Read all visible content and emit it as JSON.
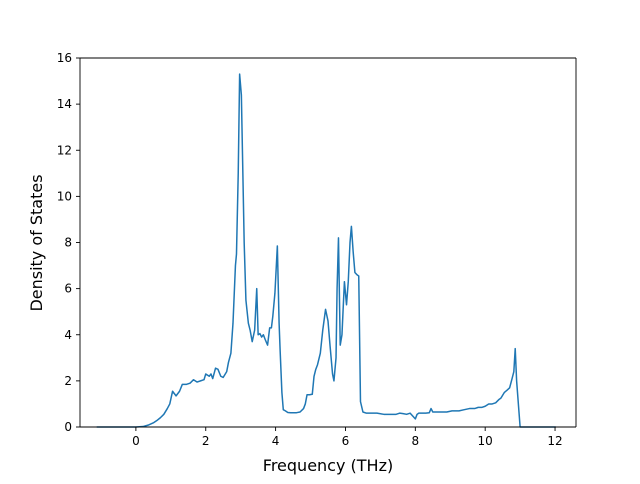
{
  "chart_data": {
    "type": "line",
    "title": "",
    "xlabel": "Frequency (THz)",
    "ylabel": "Density of States",
    "xlim": [
      -1.6,
      12.6
    ],
    "ylim": [
      0,
      16
    ],
    "xticks": [
      0,
      2,
      4,
      6,
      8,
      10,
      12
    ],
    "yticks": [
      0,
      2,
      4,
      6,
      8,
      10,
      12,
      14,
      16
    ],
    "xtick_labels": [
      "0",
      "2",
      "4",
      "6",
      "8",
      "10",
      "12"
    ],
    "ytick_labels": [
      "0",
      "2",
      "4",
      "6",
      "8",
      "10",
      "12",
      "14",
      "16"
    ],
    "grid": false,
    "legend": "none",
    "line_color": "#1f77b4",
    "series": [
      {
        "x": [
          -1.1,
          -0.5,
          0.0,
          0.2,
          0.35,
          0.5,
          0.6,
          0.7,
          0.8,
          0.9,
          0.97,
          1.05,
          1.15,
          1.25,
          1.33,
          1.45,
          1.55,
          1.65,
          1.75,
          1.85,
          1.95,
          2.0,
          2.1,
          2.15,
          2.2,
          2.28,
          2.35,
          2.43,
          2.5,
          2.6,
          2.65,
          2.72,
          2.78,
          2.85,
          2.88,
          2.93,
          2.97,
          3.02,
          3.05,
          3.1,
          3.15,
          3.22,
          3.27,
          3.33,
          3.4,
          3.46,
          3.5,
          3.55,
          3.6,
          3.65,
          3.7,
          3.77,
          3.83,
          3.88,
          3.92,
          3.98,
          4.05,
          4.1,
          4.13,
          4.18,
          4.22,
          4.28,
          4.35,
          4.43,
          4.5,
          4.6,
          4.7,
          4.8,
          4.85,
          4.9,
          4.97,
          5.05,
          5.1,
          5.15,
          5.2,
          5.28,
          5.35,
          5.43,
          5.5,
          5.56,
          5.63,
          5.67,
          5.73,
          5.76,
          5.8,
          5.85,
          5.9,
          5.93,
          5.97,
          6.03,
          6.08,
          6.13,
          6.17,
          6.22,
          6.27,
          6.33,
          6.38,
          6.43,
          6.5,
          6.6,
          6.75,
          6.9,
          7.1,
          7.3,
          7.45,
          7.55,
          7.65,
          7.75,
          7.85,
          8.0,
          8.05,
          8.1,
          8.2,
          8.3,
          8.4,
          8.45,
          8.5,
          8.6,
          8.75,
          8.9,
          9.05,
          9.25,
          9.4,
          9.55,
          9.7,
          9.8,
          9.9,
          10.0,
          10.1,
          10.2,
          10.3,
          10.4,
          10.45,
          10.55,
          10.63,
          10.7,
          10.77,
          10.82,
          10.86,
          10.9,
          11.0,
          11.5,
          12.0
        ],
        "y": [
          0.0,
          0.0,
          0.0,
          0.02,
          0.08,
          0.18,
          0.28,
          0.4,
          0.55,
          0.8,
          1.0,
          1.55,
          1.35,
          1.55,
          1.85,
          1.85,
          1.9,
          2.05,
          1.95,
          2.0,
          2.05,
          2.3,
          2.2,
          2.3,
          2.1,
          2.55,
          2.5,
          2.2,
          2.15,
          2.4,
          2.8,
          3.2,
          4.5,
          7.0,
          7.5,
          11.0,
          15.3,
          14.4,
          12.0,
          8.0,
          5.5,
          4.5,
          4.2,
          3.7,
          4.2,
          6.0,
          4.0,
          4.05,
          3.9,
          4.0,
          3.8,
          3.55,
          4.3,
          4.3,
          4.8,
          5.8,
          7.85,
          4.5,
          3.3,
          1.5,
          0.75,
          0.7,
          0.63,
          0.62,
          0.62,
          0.62,
          0.65,
          0.8,
          1.0,
          1.4,
          1.4,
          1.42,
          2.2,
          2.5,
          2.7,
          3.2,
          4.2,
          5.1,
          4.6,
          3.5,
          2.3,
          2.0,
          3.0,
          6.0,
          8.2,
          3.55,
          4.0,
          5.0,
          6.3,
          5.3,
          6.3,
          8.0,
          8.7,
          7.6,
          6.7,
          6.6,
          6.55,
          1.1,
          0.65,
          0.6,
          0.6,
          0.6,
          0.55,
          0.55,
          0.55,
          0.6,
          0.58,
          0.55,
          0.6,
          0.35,
          0.55,
          0.6,
          0.6,
          0.6,
          0.62,
          0.8,
          0.65,
          0.65,
          0.65,
          0.65,
          0.7,
          0.7,
          0.75,
          0.8,
          0.8,
          0.85,
          0.85,
          0.9,
          1.0,
          1.0,
          1.05,
          1.2,
          1.25,
          1.5,
          1.6,
          1.7,
          2.1,
          2.4,
          3.4,
          2.0,
          0.0,
          0.0,
          0.0
        ]
      }
    ]
  }
}
